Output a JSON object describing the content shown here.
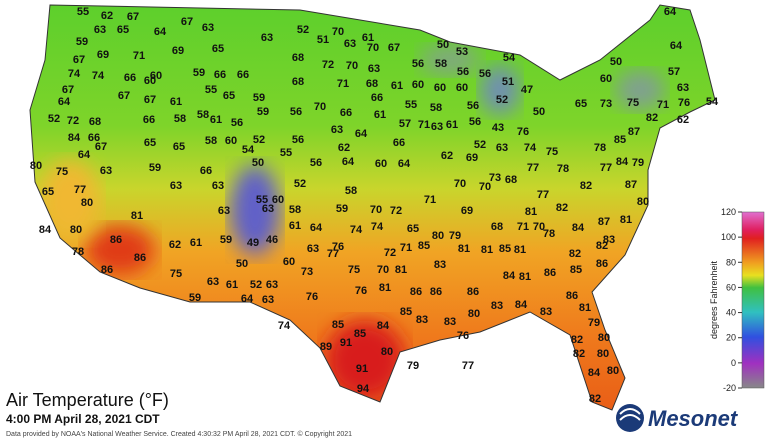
{
  "title": "Air Temperature (°F)",
  "timestamp": "4:00 PM April 28, 2021 CDT",
  "credit": "Data provided by NOAA's National Weather Service. Created 4:30:32 PM April 28, 2021 CDT. © Copyright 2021",
  "logo": "Mesonet",
  "colorbar": {
    "label": "degrees Fahrenheit",
    "range": [
      -20,
      120
    ],
    "ticks": [
      120,
      100,
      80,
      60,
      40,
      20,
      0,
      -20
    ]
  },
  "readings": [
    55,
    62,
    67,
    67,
    63,
    65,
    64,
    63,
    52,
    51,
    63,
    70,
    67,
    70,
    61,
    50,
    53,
    54,
    64,
    64,
    59,
    67,
    69,
    71,
    69,
    65,
    63,
    68,
    72,
    70,
    63,
    56,
    58,
    56,
    56,
    52,
    51,
    47,
    50,
    57,
    74,
    74,
    66,
    60,
    59,
    66,
    66,
    68,
    71,
    68,
    61,
    60,
    60,
    60,
    60,
    63,
    71,
    76,
    67,
    67,
    67,
    61,
    60,
    55,
    65,
    59,
    56,
    70,
    66,
    66,
    61,
    55,
    58,
    56,
    50,
    63,
    61,
    56,
    43,
    57,
    71,
    65,
    73,
    75,
    82,
    62,
    54,
    64,
    52,
    72,
    68,
    84,
    66,
    66,
    58,
    58,
    61,
    56,
    59,
    52,
    60,
    58,
    65,
    65,
    67,
    64,
    56,
    63,
    64,
    62,
    64,
    60,
    66,
    64,
    62,
    69,
    52,
    63,
    76,
    74,
    75,
    78,
    85,
    87,
    84,
    79,
    87,
    77,
    82,
    77,
    73,
    70,
    70,
    80,
    75,
    77,
    63,
    59,
    63,
    66,
    63,
    54,
    50,
    55,
    60,
    52,
    55,
    56,
    58,
    58,
    59,
    70,
    72,
    71,
    69,
    68,
    77,
    78,
    70,
    71,
    68,
    81,
    82,
    84,
    87,
    81,
    80,
    83,
    78,
    81,
    85,
    81,
    80,
    85,
    65,
    79,
    74,
    74,
    76,
    64,
    61,
    63,
    63,
    81,
    80,
    65,
    84,
    80,
    86,
    78,
    86,
    86,
    75,
    62,
    61,
    59,
    49,
    46,
    50,
    63,
    60,
    73,
    77,
    75,
    70,
    81,
    72,
    71,
    86,
    86,
    81,
    76,
    76,
    63,
    52,
    61,
    63,
    59,
    64,
    63,
    74,
    85,
    85,
    84,
    85,
    83,
    83,
    80,
    83,
    84,
    83,
    86,
    86,
    84,
    81,
    86,
    85,
    86,
    83,
    81,
    82,
    82,
    81,
    79,
    80,
    82,
    82,
    80,
    89,
    91,
    80,
    79,
    77,
    91,
    94,
    84,
    80,
    82,
    76
  ]
}
